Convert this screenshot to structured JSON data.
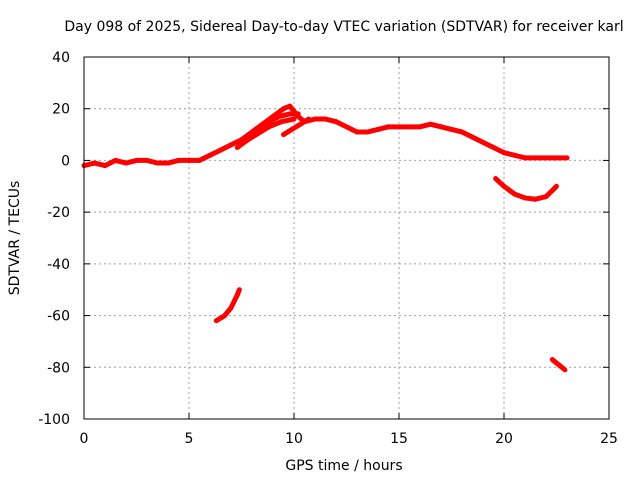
{
  "chart_data": {
    "type": "scatter",
    "title": "Day 098 of 2025, Sidereal Day-to-day VTEC variation (SDTVAR) for receiver karl",
    "xlabel": "GPS time / hours",
    "ylabel": "SDTVAR / TECUs",
    "xlim": [
      0,
      25
    ],
    "ylim": [
      -100,
      40
    ],
    "xticks": [
      0,
      5,
      10,
      15,
      20,
      25
    ],
    "yticks": [
      40,
      20,
      0,
      -20,
      -40,
      -60,
      -80,
      -100
    ],
    "grid": true,
    "color": "#ff0000",
    "series": [
      {
        "name": "sdtvar-main",
        "points": [
          [
            0,
            -2
          ],
          [
            0.5,
            -1
          ],
          [
            1,
            -2
          ],
          [
            1.5,
            0
          ],
          [
            2,
            -1
          ],
          [
            2.5,
            0
          ],
          [
            3,
            0
          ],
          [
            3.5,
            -1
          ],
          [
            4,
            -1
          ],
          [
            4.5,
            0
          ],
          [
            5,
            0
          ],
          [
            5.5,
            0
          ],
          [
            6,
            2
          ],
          [
            6.5,
            4
          ],
          [
            7,
            6
          ],
          [
            7.5,
            8
          ],
          [
            8,
            11
          ],
          [
            8.5,
            14
          ],
          [
            9,
            17
          ],
          [
            9.5,
            20
          ],
          [
            9.8,
            21
          ],
          [
            10.2,
            17
          ],
          [
            10.5,
            15
          ],
          [
            11,
            16
          ],
          [
            11.5,
            16
          ],
          [
            12,
            15
          ],
          [
            12.5,
            13
          ],
          [
            13,
            11
          ],
          [
            13.5,
            11
          ],
          [
            14,
            12
          ],
          [
            14.5,
            13
          ],
          [
            15,
            13
          ],
          [
            15.5,
            13
          ],
          [
            16,
            13
          ],
          [
            16.5,
            14
          ],
          [
            17,
            13
          ],
          [
            17.5,
            12
          ],
          [
            18,
            11
          ],
          [
            18.5,
            9
          ],
          [
            19,
            7
          ],
          [
            19.5,
            5
          ],
          [
            20,
            3
          ],
          [
            20.5,
            2
          ],
          [
            21,
            1
          ],
          [
            21.5,
            1
          ],
          [
            22,
            1
          ],
          [
            22.5,
            1
          ],
          [
            23,
            1
          ]
        ]
      },
      {
        "name": "sdtvar-arc-a",
        "points": [
          [
            7.3,
            5
          ],
          [
            7.8,
            8
          ],
          [
            8.3,
            12
          ],
          [
            8.8,
            15
          ],
          [
            9.3,
            17
          ],
          [
            9.8,
            18
          ],
          [
            10.2,
            18
          ]
        ]
      },
      {
        "name": "sdtvar-arc-b",
        "points": [
          [
            7.6,
            7
          ],
          [
            8.2,
            10
          ],
          [
            8.8,
            13
          ],
          [
            9.4,
            15
          ],
          [
            10,
            16
          ]
        ]
      },
      {
        "name": "sdtvar-arc-c",
        "points": [
          [
            9.5,
            10
          ],
          [
            9.9,
            12
          ],
          [
            10.3,
            14
          ],
          [
            10.7,
            16
          ]
        ]
      },
      {
        "name": "sdtvar-dip",
        "points": [
          [
            19.6,
            -7
          ],
          [
            20,
            -10
          ],
          [
            20.5,
            -13
          ],
          [
            21,
            -14.5
          ],
          [
            21.5,
            -15
          ],
          [
            22,
            -14
          ],
          [
            22.5,
            -10
          ]
        ]
      },
      {
        "name": "sdtvar-low-1",
        "points": [
          [
            6.3,
            -62
          ],
          [
            6.7,
            -60
          ],
          [
            7,
            -57
          ],
          [
            7.3,
            -52
          ],
          [
            7.4,
            -50
          ]
        ]
      },
      {
        "name": "sdtvar-low-2",
        "points": [
          [
            22.3,
            -77
          ],
          [
            22.6,
            -79
          ],
          [
            22.9,
            -81
          ]
        ]
      }
    ]
  }
}
